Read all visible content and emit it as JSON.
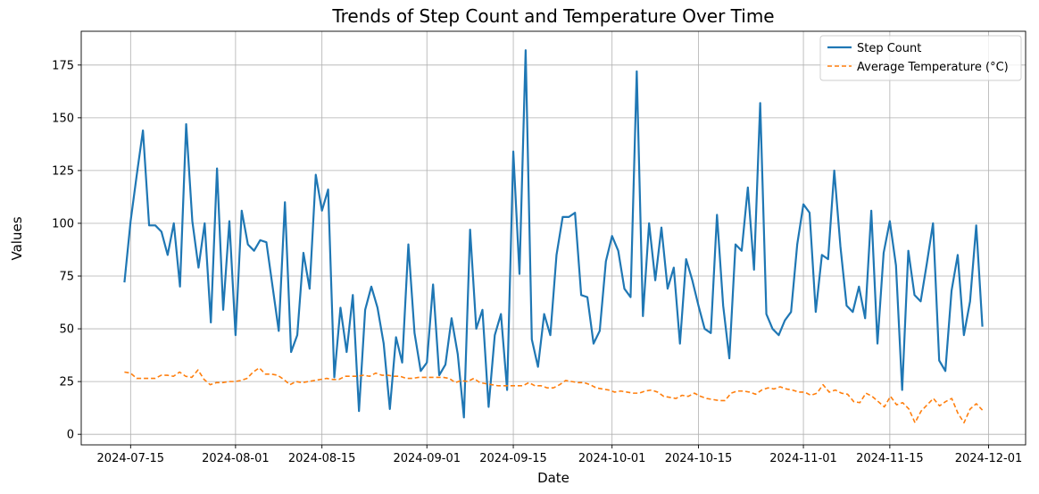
{
  "chart_data": {
    "type": "line",
    "title": "Trends of Step Count and Temperature Over Time",
    "xlabel": "Date",
    "ylabel": "Values",
    "x_start": "2024-07-14",
    "x_end": "2024-11-30",
    "xlim": [
      "2024-07-07",
      "2024-12-07"
    ],
    "ylim": [
      -5,
      191
    ],
    "x_ticks": [
      "2024-07-15",
      "2024-08-01",
      "2024-08-15",
      "2024-09-01",
      "2024-09-15",
      "2024-10-01",
      "2024-10-15",
      "2024-11-01",
      "2024-11-15",
      "2024-12-01"
    ],
    "y_ticks": [
      0,
      25,
      50,
      75,
      100,
      125,
      150,
      175
    ],
    "grid": true,
    "legend_position": "top-right",
    "series": [
      {
        "name": "Step Count",
        "color": "#1f77b4",
        "style": "solid",
        "values": [
          72,
          101,
          123,
          144,
          99,
          99,
          96,
          85,
          100,
          70,
          147,
          101,
          79,
          100,
          53,
          126,
          59,
          101,
          47,
          106,
          90,
          87,
          92,
          91,
          70,
          49,
          110,
          39,
          47,
          86,
          69,
          123,
          106,
          116,
          27,
          60,
          39,
          66,
          11,
          59,
          70,
          60,
          43,
          12,
          46,
          34,
          90,
          48,
          30,
          34,
          71,
          28,
          33,
          55,
          38,
          8,
          97,
          50,
          59,
          13,
          47,
          57,
          21,
          134,
          76,
          182,
          45,
          32,
          57,
          47,
          85,
          103,
          103,
          105,
          66,
          65,
          43,
          49,
          82,
          94,
          87,
          69,
          65,
          172,
          56,
          100,
          73,
          98,
          69,
          79,
          43,
          83,
          73,
          61,
          50,
          48,
          104,
          61,
          36,
          90,
          87,
          117,
          78,
          157,
          57,
          50,
          47,
          54,
          58,
          90,
          109,
          105,
          58,
          85,
          83,
          125,
          89,
          61,
          58,
          70,
          55,
          106,
          43,
          86,
          101,
          80,
          21,
          87,
          66,
          63,
          81,
          100,
          35,
          30,
          68,
          85,
          47,
          63,
          99,
          51
        ]
      },
      {
        "name": "Average Temperature (°C)",
        "color": "#ff7f0e",
        "style": "dashed",
        "values": [
          29.5,
          29,
          26.5,
          26.5,
          26.5,
          26.5,
          28,
          28,
          27.5,
          29.5,
          27.5,
          27,
          30.5,
          26,
          23.5,
          24.5,
          24.5,
          25,
          25,
          25.5,
          26.5,
          29.5,
          31.5,
          28.5,
          28.5,
          28,
          26,
          23.5,
          25,
          24.5,
          25,
          25.5,
          26,
          26.5,
          26,
          26,
          27.5,
          27.5,
          27.5,
          28,
          27.5,
          29,
          28,
          28,
          27.5,
          27.5,
          26.5,
          26.5,
          27,
          27,
          27,
          27,
          27,
          26.5,
          24.5,
          25.5,
          25,
          26.5,
          24.5,
          24,
          23.5,
          23,
          23,
          23,
          23,
          23,
          24.5,
          23,
          23,
          22,
          22,
          23.5,
          25.5,
          25,
          24.5,
          24.5,
          23.5,
          22,
          21.5,
          21,
          20,
          20.5,
          20,
          19.5,
          19.5,
          20.5,
          21,
          20,
          18,
          17.5,
          17,
          18.5,
          18,
          19.5,
          18,
          17,
          16.5,
          16,
          16,
          19.5,
          20.5,
          20.5,
          20,
          19,
          21,
          22,
          21.5,
          22.5,
          21.5,
          21,
          20,
          20,
          18.5,
          19.5,
          23.5,
          20,
          21,
          19.5,
          19,
          15.5,
          15,
          19.5,
          18,
          15.5,
          13,
          18,
          14,
          15,
          12,
          5.5,
          11,
          14,
          17,
          13.5,
          15.5,
          17,
          10,
          5.5,
          12,
          14.5,
          11.5
        ]
      }
    ]
  }
}
